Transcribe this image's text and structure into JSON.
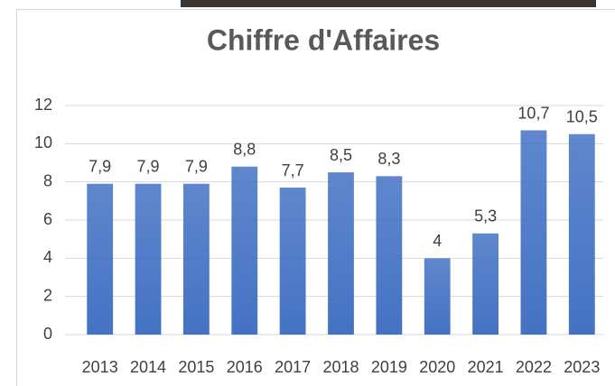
{
  "chart_data": {
    "type": "bar",
    "title": "Chiffre d'Affaires",
    "categories": [
      "2013",
      "2014",
      "2015",
      "2016",
      "2017",
      "2018",
      "2019",
      "2020",
      "2021",
      "2022",
      "2023"
    ],
    "values": [
      7.9,
      7.9,
      7.9,
      8.8,
      7.7,
      8.5,
      8.3,
      4,
      5.3,
      10.7,
      10.5
    ],
    "value_labels": [
      "7,9",
      "7,9",
      "7,9",
      "8,8",
      "7,7",
      "8,5",
      "8,3",
      "4",
      "5,3",
      "10,7",
      "10,5"
    ],
    "color": "#4472c4",
    "ylim": [
      0,
      12
    ],
    "yticks": [
      0,
      2,
      4,
      6,
      8,
      10,
      12
    ],
    "grid": true
  }
}
